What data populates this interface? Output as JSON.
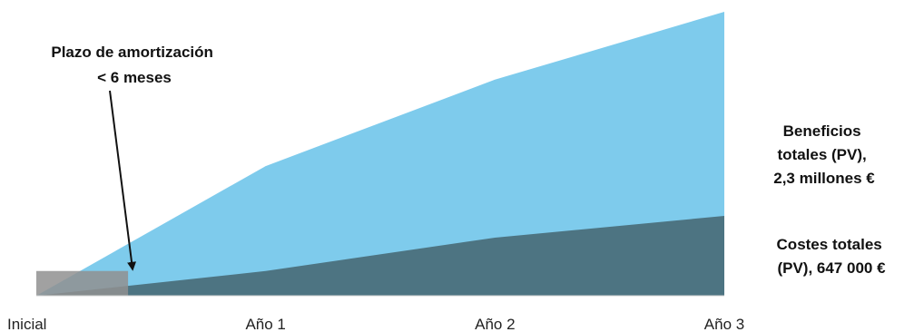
{
  "chart_data": {
    "type": "area",
    "title": "",
    "xlabel": "",
    "ylabel": "",
    "categories": [
      "Inicial",
      "Año 1",
      "Año 2",
      "Año 3"
    ],
    "x": [
      0,
      1,
      2,
      3
    ],
    "ylim": [
      0,
      2.3
    ],
    "grid": false,
    "legend": "none",
    "series": [
      {
        "values": [
          0,
          1.05,
          1.75,
          2.3
        ],
        "color": "#7ecbec"
      },
      {
        "values": [
          0,
          0.2,
          0.47,
          0.647
        ],
        "color": "#4d7482"
      },
      {
        "values": [
          0.2,
          0.2
        ],
        "x": [
          0,
          0.4
        ],
        "color": "#909090"
      }
    ],
    "annotations": {
      "payback": {
        "line1": "Plazo de amortización",
        "line2": "< 6 meses",
        "x": 0.4,
        "y": 0.2
      },
      "benefits": {
        "line1": "Beneficios",
        "line2": "totales (PV),",
        "line3": "2,3 millones €"
      },
      "costs": {
        "line1": "Costes totales",
        "line2": "(PV), 647 000 €"
      }
    }
  }
}
